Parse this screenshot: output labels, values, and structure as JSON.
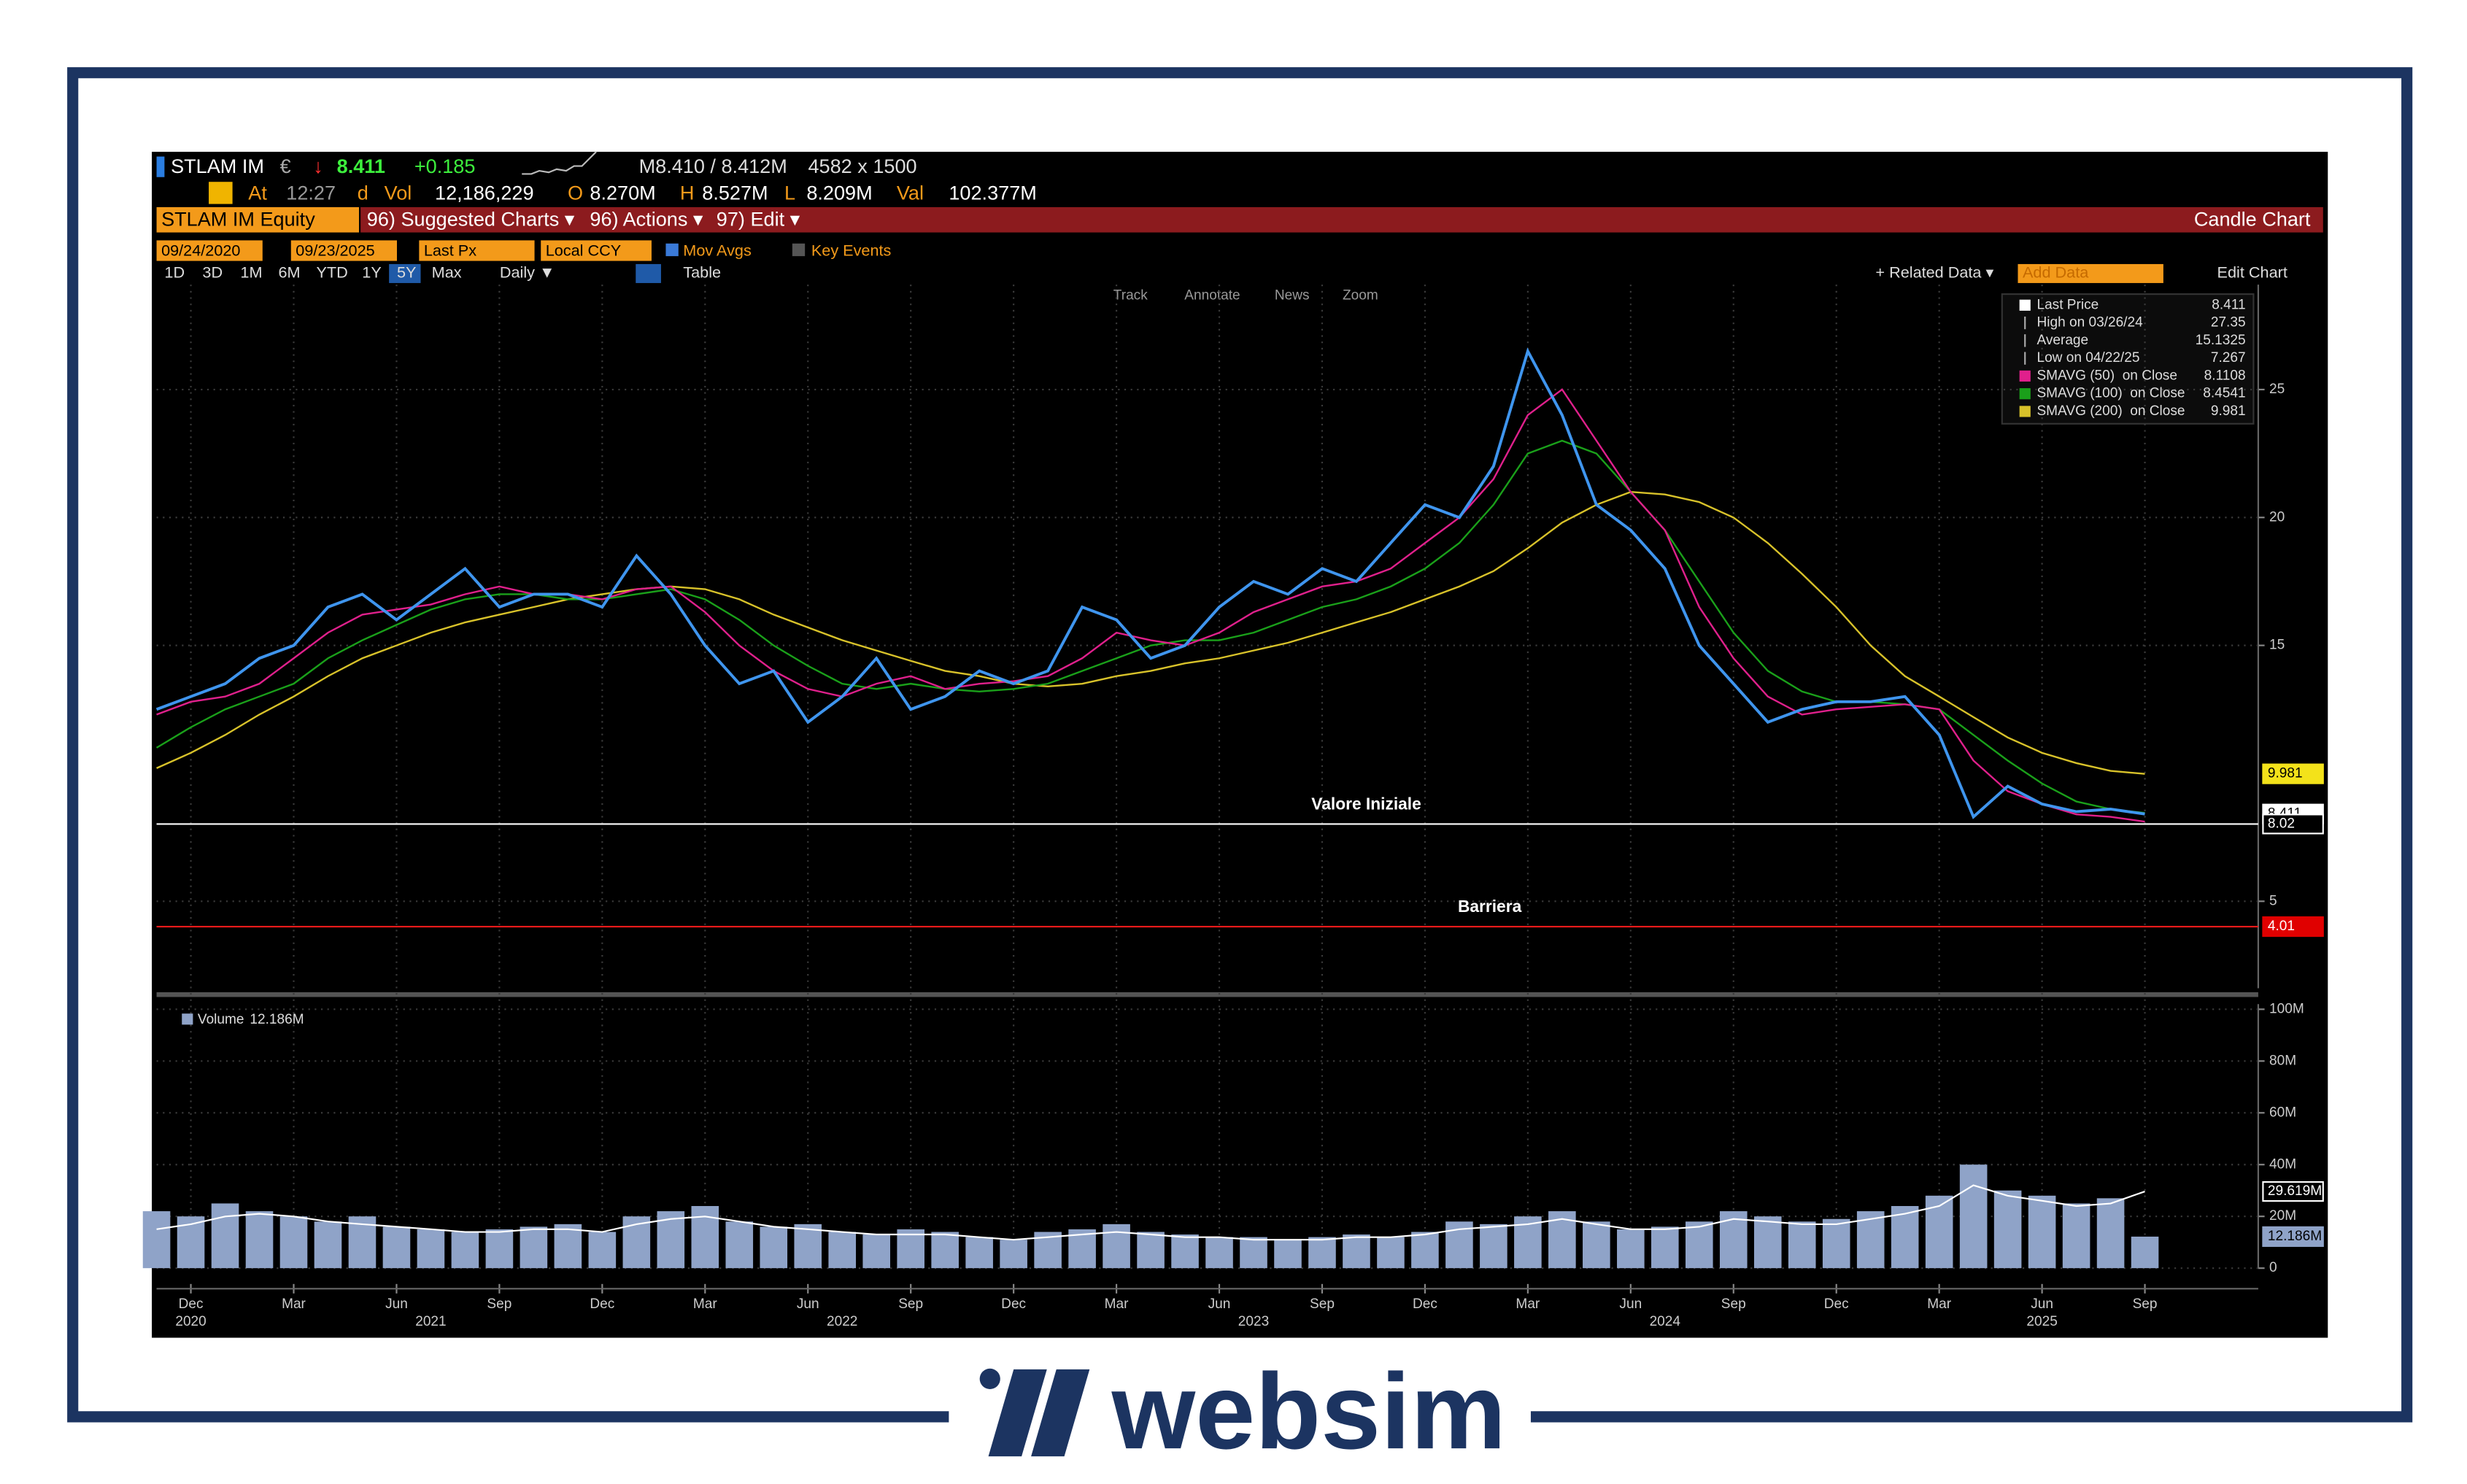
{
  "brand": "websim",
  "header": {
    "ticker": "STLAM IM",
    "currency": "€",
    "arrow": "↓",
    "last": "8.411",
    "change": "+0.185",
    "quote": "M8.410 / 8.412M",
    "size": "4582 x 1500",
    "at": "At",
    "time": "12:27",
    "d": "d",
    "vol_label": "Vol",
    "vol": "12,186,229",
    "o_label": "O",
    "open": "8.270M",
    "h_label": "H",
    "high": "8.527M",
    "l_label": "L",
    "low": "8.209M",
    "val_label": "Val",
    "val": "102.377M",
    "security": "STLAM IM Equity",
    "menu1": "96) Suggested Charts ▾",
    "menu2": "96) Actions ▾",
    "menu3": "97) Edit ▾",
    "chart_kind": "Candle Chart",
    "start": "09/24/2020",
    "end": "09/23/2025",
    "field": "Last Px",
    "ccy": "Local CCY",
    "mov_avgs": "Mov Avgs",
    "key_events": "Key Events",
    "periods": [
      "1D",
      "3D",
      "1M",
      "6M",
      "YTD",
      "1Y",
      "5Y",
      "Max"
    ],
    "freq": "Daily ▼",
    "table": "Table",
    "related": "+ Related Data ▾",
    "add_data": "Add Data",
    "edit_chart": "Edit Chart",
    "tools": [
      "Track",
      "Annotate",
      "News",
      "Zoom"
    ]
  },
  "chart_data": [
    {
      "type": "line",
      "x": [
        "2020-11",
        "2020-12",
        "2021-01",
        "2021-02",
        "2021-03",
        "2021-04",
        "2021-05",
        "2021-06",
        "2021-07",
        "2021-08",
        "2021-09",
        "2021-10",
        "2021-11",
        "2021-12",
        "2022-01",
        "2022-02",
        "2022-03",
        "2022-04",
        "2022-05",
        "2022-06",
        "2022-07",
        "2022-08",
        "2022-09",
        "2022-10",
        "2022-11",
        "2022-12",
        "2023-01",
        "2023-02",
        "2023-03",
        "2023-04",
        "2023-05",
        "2023-06",
        "2023-07",
        "2023-08",
        "2023-09",
        "2023-10",
        "2023-11",
        "2023-12",
        "2024-01",
        "2024-02",
        "2024-03",
        "2024-04",
        "2024-05",
        "2024-06",
        "2024-07",
        "2024-08",
        "2024-09",
        "2024-10",
        "2024-11",
        "2024-12",
        "2025-01",
        "2025-02",
        "2025-03",
        "2025-04",
        "2025-05",
        "2025-06",
        "2025-07",
        "2025-08",
        "2025-09"
      ],
      "series": [
        {
          "name": "Last Price",
          "color": "#3f95ee",
          "legend_value": 8.411,
          "values": [
            12.5,
            13,
            13.5,
            14.5,
            15,
            16.5,
            17,
            16,
            17,
            18,
            16.5,
            17,
            17,
            16.5,
            18.5,
            17,
            15,
            13.5,
            14,
            12,
            13,
            14.5,
            12.5,
            13,
            14,
            13.5,
            14,
            16.5,
            16,
            14.5,
            15,
            16.5,
            17.5,
            17,
            18,
            17.5,
            19,
            20.5,
            20,
            22,
            26.5,
            24,
            20.5,
            19.5,
            18,
            15,
            13.5,
            12,
            12.5,
            12.8,
            12.8,
            13,
            11.5,
            8.3,
            9.5,
            8.8,
            8.5,
            8.6,
            8.411
          ]
        },
        {
          "name": "SMAVG (50)  on Close",
          "color": "#e0208c",
          "legend_value": 8.1108,
          "values": [
            12.3,
            12.8,
            13,
            13.5,
            14.5,
            15.5,
            16.2,
            16.4,
            16.6,
            17,
            17.3,
            17,
            17,
            16.8,
            17.2,
            17.3,
            16.3,
            15,
            14,
            13.3,
            13,
            13.5,
            13.8,
            13.3,
            13.5,
            13.6,
            13.8,
            14.5,
            15.5,
            15.2,
            15,
            15.5,
            16.3,
            16.8,
            17.3,
            17.5,
            18,
            19,
            20,
            21.5,
            24,
            25,
            23,
            21,
            19.5,
            16.5,
            14.5,
            13,
            12.3,
            12.5,
            12.6,
            12.7,
            12.5,
            10.5,
            9.3,
            8.8,
            8.4,
            8.3,
            8.1108
          ]
        },
        {
          "name": "SMAVG (100)  on Close",
          "color": "#1aa01a",
          "legend_value": 8.4541,
          "values": [
            11,
            11.8,
            12.5,
            13,
            13.5,
            14.5,
            15.2,
            15.8,
            16.4,
            16.8,
            17,
            17,
            16.8,
            16.8,
            17,
            17.2,
            16.8,
            16,
            15,
            14.2,
            13.5,
            13.3,
            13.5,
            13.3,
            13.2,
            13.3,
            13.5,
            14,
            14.5,
            15,
            15.2,
            15.2,
            15.5,
            16,
            16.5,
            16.8,
            17.3,
            18,
            19,
            20.5,
            22.5,
            23,
            22.5,
            21,
            19.5,
            17.5,
            15.5,
            14,
            13.2,
            12.8,
            12.8,
            12.7,
            12.5,
            11.5,
            10.5,
            9.6,
            8.9,
            8.6,
            8.4541
          ]
        },
        {
          "name": "SMAVG (200)  on Close",
          "color": "#d8c22a",
          "legend_value": 9.981,
          "values": [
            10.2,
            10.8,
            11.5,
            12.3,
            13,
            13.8,
            14.5,
            15,
            15.5,
            15.9,
            16.2,
            16.5,
            16.8,
            17,
            17.2,
            17.3,
            17.2,
            16.8,
            16.2,
            15.7,
            15.2,
            14.8,
            14.4,
            14,
            13.8,
            13.5,
            13.4,
            13.5,
            13.8,
            14,
            14.3,
            14.5,
            14.8,
            15.1,
            15.5,
            15.9,
            16.3,
            16.8,
            17.3,
            17.9,
            18.8,
            19.8,
            20.5,
            21,
            20.9,
            20.6,
            20,
            19,
            17.8,
            16.5,
            15,
            13.8,
            13,
            12.2,
            11.4,
            10.8,
            10.4,
            10.1,
            9.981
          ]
        }
      ],
      "stats": [
        {
          "label": "High on 03/26/24",
          "value": 27.35
        },
        {
          "label": "Average",
          "value": 15.1325
        },
        {
          "label": "Low on 04/22/25",
          "value": 7.267
        }
      ],
      "ref_lines": [
        {
          "label": "Valore Iniziale",
          "value": 8.02,
          "color": "#ffffff"
        },
        {
          "label": "Barriera",
          "value": 4.01,
          "color": "#ff1a1a"
        }
      ],
      "xlim": [
        "2020-11",
        "2025-10"
      ],
      "ylim": [
        1.6,
        29.1
      ],
      "yticks": [
        5,
        15,
        20,
        25
      ],
      "grid": true,
      "xticks": [
        {
          "value": "2020-12",
          "label": "Dec"
        },
        {
          "value": "2021-03",
          "label": "Mar"
        },
        {
          "value": "2021-06",
          "label": "Jun"
        },
        {
          "value": "2021-09",
          "label": "Sep"
        },
        {
          "value": "2021-12",
          "label": "Dec"
        },
        {
          "value": "2022-03",
          "label": "Mar"
        },
        {
          "value": "2022-06",
          "label": "Jun"
        },
        {
          "value": "2022-09",
          "label": "Sep"
        },
        {
          "value": "2022-12",
          "label": "Dec"
        },
        {
          "value": "2023-03",
          "label": "Mar"
        },
        {
          "value": "2023-06",
          "label": "Jun"
        },
        {
          "value": "2023-09",
          "label": "Sep"
        },
        {
          "value": "2023-12",
          "label": "Dec"
        },
        {
          "value": "2024-03",
          "label": "Mar"
        },
        {
          "value": "2024-06",
          "label": "Jun"
        },
        {
          "value": "2024-09",
          "label": "Sep"
        },
        {
          "value": "2024-12",
          "label": "Dec"
        },
        {
          "value": "2025-03",
          "label": "Mar"
        },
        {
          "value": "2025-06",
          "label": "Jun"
        },
        {
          "value": "2025-09",
          "label": "Sep"
        }
      ],
      "year_labels": [
        {
          "value": "2020-12",
          "label": "2020"
        },
        {
          "value": "2021-07",
          "label": "2021"
        },
        {
          "value": "2022-07",
          "label": "2022"
        },
        {
          "value": "2023-07",
          "label": "2023"
        },
        {
          "value": "2024-07",
          "label": "2024"
        },
        {
          "value": "2025-06",
          "label": "2025"
        }
      ]
    },
    {
      "type": "bar",
      "x": [
        "2020-11",
        "2020-12",
        "2021-01",
        "2021-02",
        "2021-03",
        "2021-04",
        "2021-05",
        "2021-06",
        "2021-07",
        "2021-08",
        "2021-09",
        "2021-10",
        "2021-11",
        "2021-12",
        "2022-01",
        "2022-02",
        "2022-03",
        "2022-04",
        "2022-05",
        "2022-06",
        "2022-07",
        "2022-08",
        "2022-09",
        "2022-10",
        "2022-11",
        "2022-12",
        "2023-01",
        "2023-02",
        "2023-03",
        "2023-04",
        "2023-05",
        "2023-06",
        "2023-07",
        "2023-08",
        "2023-09",
        "2023-10",
        "2023-11",
        "2023-12",
        "2024-01",
        "2024-02",
        "2024-03",
        "2024-04",
        "2024-05",
        "2024-06",
        "2024-07",
        "2024-08",
        "2024-09",
        "2024-10",
        "2024-11",
        "2024-12",
        "2025-01",
        "2025-02",
        "2025-03",
        "2025-04",
        "2025-05",
        "2025-06",
        "2025-07",
        "2025-08",
        "2025-09"
      ],
      "series": [
        {
          "name": "Volume",
          "color": "#8fa3c8",
          "last_value_label": "12.186M",
          "values": [
            22,
            20,
            25,
            22,
            20,
            18,
            20,
            16,
            15,
            14,
            15,
            16,
            17,
            14,
            20,
            22,
            24,
            18,
            16,
            17,
            14,
            13,
            15,
            14,
            12,
            11,
            14,
            15,
            17,
            14,
            13,
            12,
            12,
            11,
            12,
            13,
            12,
            14,
            18,
            17,
            20,
            22,
            18,
            15,
            16,
            18,
            22,
            20,
            18,
            19,
            22,
            24,
            28,
            40,
            30,
            28,
            25,
            27,
            12.186
          ]
        },
        {
          "color": "#ffffff",
          "last_value_label": "29.619M",
          "values": [
            15,
            17,
            20,
            21,
            20,
            18,
            17,
            16,
            15,
            14,
            14,
            15,
            15,
            14,
            17,
            19,
            20,
            18,
            16,
            15,
            14,
            13,
            13,
            13,
            12,
            11,
            12,
            13,
            14,
            13,
            12,
            12,
            11,
            11,
            11,
            12,
            12,
            13,
            15,
            16,
            17,
            19,
            17,
            15,
            15,
            16,
            19,
            18,
            17,
            17,
            19,
            21,
            24,
            32,
            28,
            26,
            24,
            25,
            29.619
          ]
        }
      ],
      "ylim": [
        0,
        102
      ],
      "yticks": [
        0,
        {
          "value": 20,
          "label": "20M"
        },
        {
          "value": 40,
          "label": "40M"
        },
        {
          "value": 60,
          "label": "60M"
        },
        {
          "value": 80,
          "label": "80M"
        },
        {
          "value": 100,
          "label": "100M"
        }
      ]
    }
  ]
}
